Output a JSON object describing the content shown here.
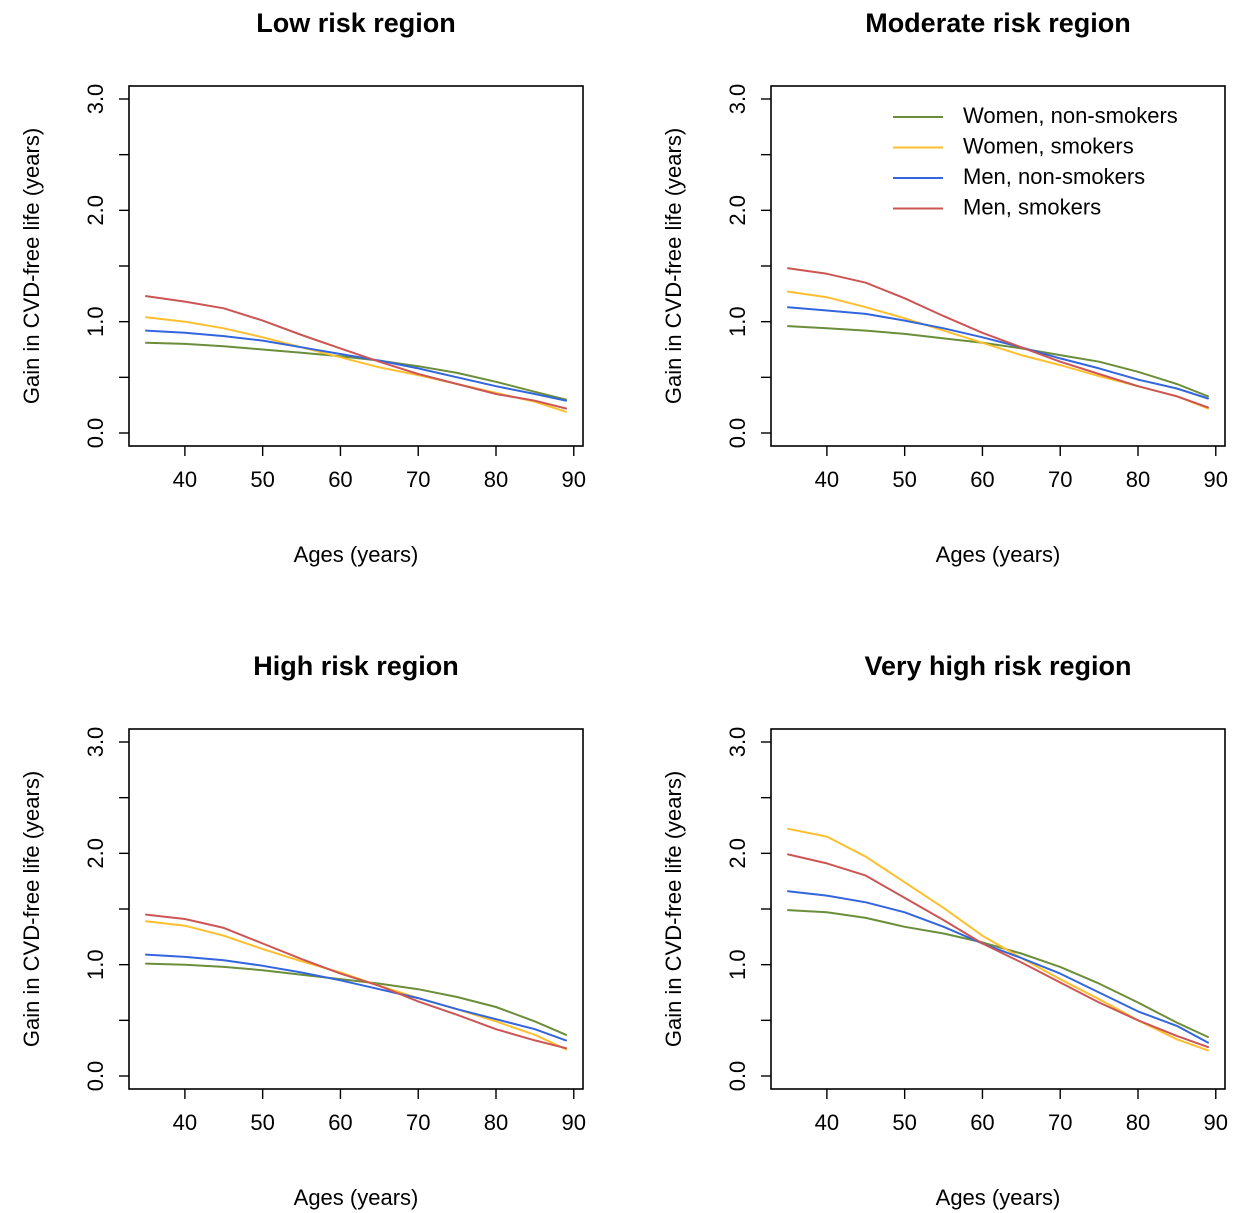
{
  "chart_data": [
    {
      "type": "line",
      "title": "Low risk region",
      "xlabel": "Ages (years)",
      "ylabel": "Gain in CVD-free life (years)",
      "xlim": [
        35,
        89
      ],
      "ylim": [
        0,
        3
      ],
      "xticks": [
        40,
        50,
        60,
        70,
        80,
        90
      ],
      "yticks": [
        0,
        0.5,
        1,
        1.5,
        2,
        2.5,
        3
      ],
      "ytick_labels": [
        "0.0",
        "",
        "1.0",
        "",
        "2.0",
        "",
        "3.0"
      ],
      "legend": null,
      "series": [
        {
          "name": "Women, non-smokers",
          "color": "#6b8e3a",
          "x": [
            35,
            40,
            45,
            50,
            55,
            60,
            65,
            70,
            75,
            80,
            85,
            89
          ],
          "y": [
            0.81,
            0.8,
            0.78,
            0.75,
            0.72,
            0.69,
            0.65,
            0.6,
            0.54,
            0.46,
            0.37,
            0.3
          ]
        },
        {
          "name": "Women, smokers",
          "color": "#fdbf2d",
          "x": [
            35,
            40,
            45,
            50,
            55,
            60,
            65,
            70,
            75,
            80,
            85,
            89
          ],
          "y": [
            1.04,
            1.0,
            0.94,
            0.86,
            0.77,
            0.68,
            0.59,
            0.52,
            0.44,
            0.36,
            0.28,
            0.19
          ]
        },
        {
          "name": "Men, non-smokers",
          "color": "#3366dd",
          "x": [
            35,
            40,
            45,
            50,
            55,
            60,
            65,
            70,
            75,
            80,
            85,
            89
          ],
          "y": [
            0.92,
            0.9,
            0.87,
            0.83,
            0.77,
            0.71,
            0.65,
            0.58,
            0.5,
            0.42,
            0.35,
            0.29
          ]
        },
        {
          "name": "Men, smokers",
          "color": "#cc5555",
          "x": [
            35,
            40,
            45,
            50,
            55,
            60,
            65,
            70,
            75,
            80,
            85,
            89
          ],
          "y": [
            1.23,
            1.18,
            1.12,
            1.01,
            0.88,
            0.76,
            0.64,
            0.53,
            0.44,
            0.35,
            0.29,
            0.22
          ]
        }
      ]
    },
    {
      "type": "line",
      "title": "Moderate risk region",
      "xlabel": "Ages (years)",
      "ylabel": "Gain in CVD-free life (years)",
      "xlim": [
        35,
        89
      ],
      "ylim": [
        0,
        3
      ],
      "xticks": [
        40,
        50,
        60,
        70,
        80,
        90
      ],
      "yticks": [
        0,
        0.5,
        1,
        1.5,
        2,
        2.5,
        3
      ],
      "ytick_labels": [
        "0.0",
        "",
        "1.0",
        "",
        "2.0",
        "",
        "3.0"
      ],
      "legend": "top-right",
      "series": [
        {
          "name": "Women, non-smokers",
          "color": "#6b8e3a",
          "x": [
            35,
            40,
            45,
            50,
            55,
            60,
            65,
            70,
            75,
            80,
            85,
            89
          ],
          "y": [
            0.96,
            0.94,
            0.92,
            0.89,
            0.85,
            0.81,
            0.76,
            0.7,
            0.64,
            0.55,
            0.44,
            0.33
          ]
        },
        {
          "name": "Women, smokers",
          "color": "#fdbf2d",
          "x": [
            35,
            40,
            45,
            50,
            55,
            60,
            65,
            70,
            75,
            80,
            85,
            89
          ],
          "y": [
            1.27,
            1.22,
            1.13,
            1.03,
            0.92,
            0.81,
            0.7,
            0.61,
            0.51,
            0.42,
            0.33,
            0.22
          ]
        },
        {
          "name": "Men, non-smokers",
          "color": "#3366dd",
          "x": [
            35,
            40,
            45,
            50,
            55,
            60,
            65,
            70,
            75,
            80,
            85,
            89
          ],
          "y": [
            1.13,
            1.1,
            1.07,
            1.01,
            0.94,
            0.86,
            0.77,
            0.67,
            0.58,
            0.48,
            0.4,
            0.31
          ]
        },
        {
          "name": "Men, smokers",
          "color": "#cc5555",
          "x": [
            35,
            40,
            45,
            50,
            55,
            60,
            65,
            70,
            75,
            80,
            85,
            89
          ],
          "y": [
            1.48,
            1.43,
            1.35,
            1.21,
            1.05,
            0.9,
            0.77,
            0.64,
            0.53,
            0.42,
            0.33,
            0.23
          ]
        }
      ]
    },
    {
      "type": "line",
      "title": "High risk region",
      "xlabel": "Ages (years)",
      "ylabel": "Gain in CVD-free life (years)",
      "xlim": [
        35,
        89
      ],
      "ylim": [
        0,
        3
      ],
      "xticks": [
        40,
        50,
        60,
        70,
        80,
        90
      ],
      "yticks": [
        0,
        0.5,
        1,
        1.5,
        2,
        2.5,
        3
      ],
      "ytick_labels": [
        "0.0",
        "",
        "1.0",
        "",
        "2.0",
        "",
        "3.0"
      ],
      "legend": null,
      "series": [
        {
          "name": "Women, non-smokers",
          "color": "#6b8e3a",
          "x": [
            35,
            40,
            45,
            50,
            55,
            60,
            65,
            70,
            75,
            80,
            85,
            89
          ],
          "y": [
            1.01,
            1.0,
            0.98,
            0.95,
            0.91,
            0.87,
            0.83,
            0.78,
            0.71,
            0.62,
            0.49,
            0.37
          ]
        },
        {
          "name": "Women, smokers",
          "color": "#fdbf2d",
          "x": [
            35,
            40,
            45,
            50,
            55,
            60,
            65,
            70,
            75,
            80,
            85,
            89
          ],
          "y": [
            1.39,
            1.35,
            1.26,
            1.14,
            1.03,
            0.93,
            0.81,
            0.7,
            0.6,
            0.49,
            0.37,
            0.24
          ]
        },
        {
          "name": "Men, non-smokers",
          "color": "#3366dd",
          "x": [
            35,
            40,
            45,
            50,
            55,
            60,
            65,
            70,
            75,
            80,
            85,
            89
          ],
          "y": [
            1.09,
            1.07,
            1.04,
            0.99,
            0.93,
            0.86,
            0.78,
            0.7,
            0.6,
            0.51,
            0.42,
            0.32
          ]
        },
        {
          "name": "Men, smokers",
          "color": "#cc5555",
          "x": [
            35,
            40,
            45,
            50,
            55,
            60,
            65,
            70,
            75,
            80,
            85,
            89
          ],
          "y": [
            1.45,
            1.41,
            1.33,
            1.19,
            1.05,
            0.92,
            0.81,
            0.67,
            0.55,
            0.42,
            0.32,
            0.25
          ]
        }
      ]
    },
    {
      "type": "line",
      "title": "Very high risk region",
      "xlabel": "Ages (years)",
      "ylabel": "Gain in CVD-free life (years)",
      "xlim": [
        35,
        89
      ],
      "ylim": [
        0,
        3
      ],
      "xticks": [
        40,
        50,
        60,
        70,
        80,
        90
      ],
      "yticks": [
        0,
        0.5,
        1,
        1.5,
        2,
        2.5,
        3
      ],
      "ytick_labels": [
        "0.0",
        "",
        "1.0",
        "",
        "2.0",
        "",
        "3.0"
      ],
      "legend": null,
      "series": [
        {
          "name": "Women, non-smokers",
          "color": "#6b8e3a",
          "x": [
            35,
            40,
            45,
            50,
            55,
            60,
            65,
            70,
            75,
            80,
            85,
            89
          ],
          "y": [
            1.49,
            1.47,
            1.42,
            1.34,
            1.28,
            1.2,
            1.1,
            0.98,
            0.83,
            0.66,
            0.48,
            0.35
          ]
        },
        {
          "name": "Women, smokers",
          "color": "#fdbf2d",
          "x": [
            35,
            40,
            45,
            50,
            55,
            60,
            65,
            70,
            75,
            80,
            85,
            89
          ],
          "y": [
            2.22,
            2.15,
            1.97,
            1.74,
            1.51,
            1.26,
            1.06,
            0.87,
            0.69,
            0.5,
            0.33,
            0.23
          ]
        },
        {
          "name": "Men, non-smokers",
          "color": "#3366dd",
          "x": [
            35,
            40,
            45,
            50,
            55,
            60,
            65,
            70,
            75,
            80,
            85,
            89
          ],
          "y": [
            1.66,
            1.62,
            1.56,
            1.47,
            1.34,
            1.19,
            1.06,
            0.92,
            0.75,
            0.58,
            0.45,
            0.3
          ]
        },
        {
          "name": "Men, smokers",
          "color": "#cc5555",
          "x": [
            35,
            40,
            45,
            50,
            55,
            60,
            65,
            70,
            75,
            80,
            85,
            89
          ],
          "y": [
            1.99,
            1.91,
            1.8,
            1.6,
            1.4,
            1.19,
            1.02,
            0.84,
            0.66,
            0.5,
            0.36,
            0.26
          ]
        }
      ]
    }
  ]
}
